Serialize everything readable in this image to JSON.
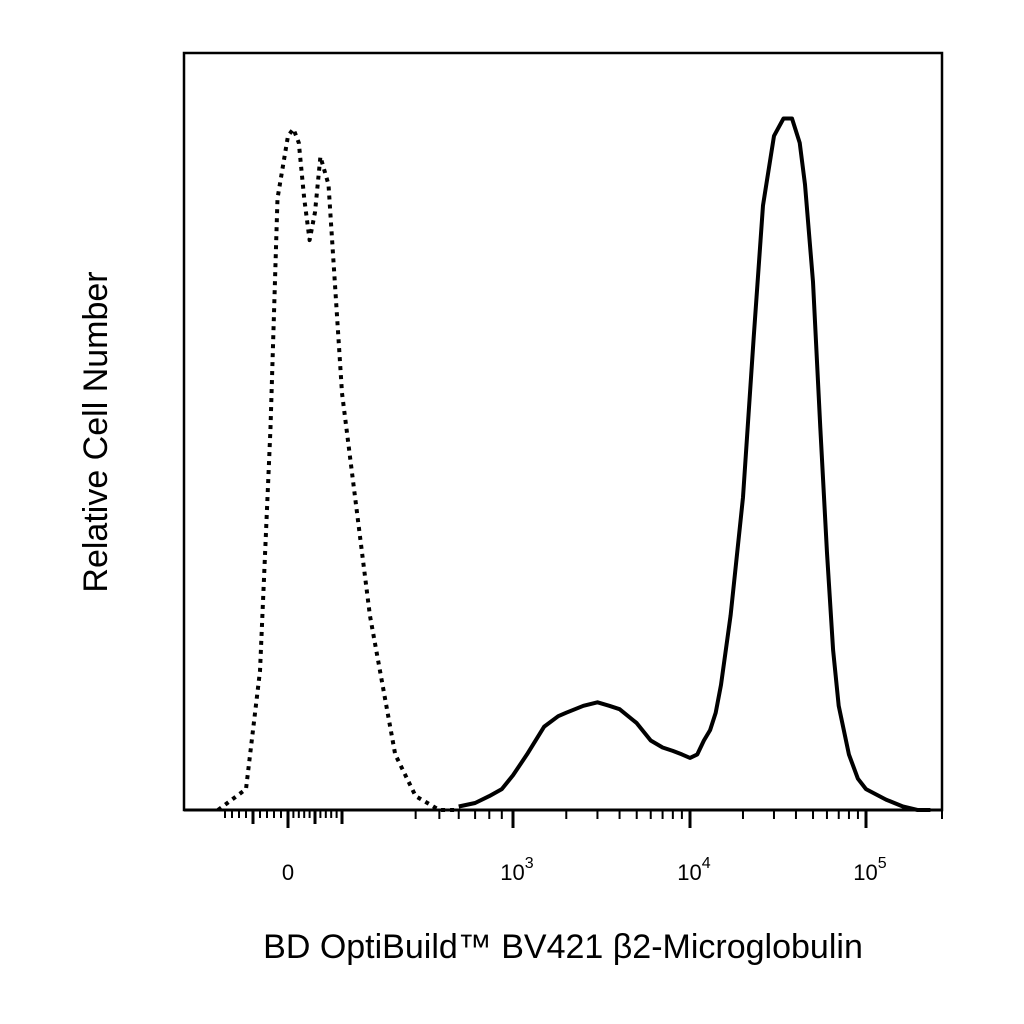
{
  "chart_data": {
    "type": "line",
    "xlabel": "BD OptiBuild™ BV421 β2-Microglobulin",
    "ylabel": "Relative Cell Number",
    "x_scale": "biexponential",
    "xlim": [
      -200,
      200000
    ],
    "ylim": [
      0,
      100
    ],
    "grid": false,
    "x_ticks": [
      {
        "value": 0,
        "base": "0",
        "exp": ""
      },
      {
        "value": 1000,
        "base": "10",
        "exp": "3"
      },
      {
        "value": 10000,
        "base": "10",
        "exp": "4"
      },
      {
        "value": 100000,
        "base": "10",
        "exp": "5"
      }
    ],
    "series": [
      {
        "style": "dotted",
        "x": [
          -200,
          -120,
          -80,
          -50,
          -30,
          0,
          20,
          40,
          60,
          80,
          100,
          120,
          150,
          200,
          260,
          330,
          400,
          500,
          600
        ],
        "y": [
          0,
          3,
          20,
          55,
          88,
          97,
          98,
          96,
          88,
          82,
          86,
          94,
          90,
          60,
          28,
          8,
          2,
          0,
          0
        ]
      },
      {
        "style": "solid",
        "x": [
          600,
          700,
          800,
          900,
          1000,
          1200,
          1500,
          1800,
          2000,
          2500,
          3000,
          3500,
          4000,
          5000,
          6000,
          7000,
          8000,
          9000,
          10000,
          11000,
          12000,
          13000,
          14000,
          15000,
          17000,
          20000,
          23000,
          26000,
          30000,
          34000,
          38000,
          42000,
          45000,
          50000,
          55000,
          60000,
          65000,
          70000,
          80000,
          90000,
          100000,
          120000,
          140000,
          160000,
          180000
        ],
        "y": [
          0.5,
          1,
          2,
          3,
          5,
          8,
          12,
          13.5,
          14,
          15,
          15.5,
          15,
          14.5,
          12.5,
          10,
          9,
          8.5,
          8,
          7.5,
          8,
          10,
          11.5,
          14,
          18,
          28,
          45,
          68,
          87,
          97,
          99.5,
          99.5,
          96,
          90,
          76,
          55,
          37,
          23,
          15,
          8,
          4.5,
          3,
          1.5,
          0.5,
          0,
          0
        ]
      }
    ]
  }
}
